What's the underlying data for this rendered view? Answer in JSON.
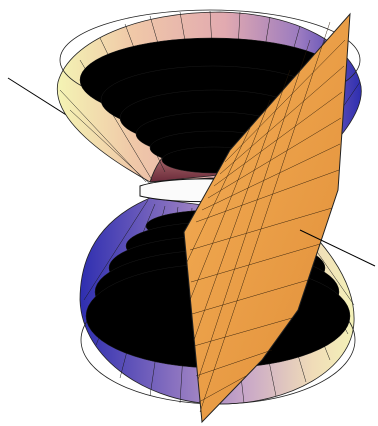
{
  "figure": {
    "description_type": "3D surface plot: hyperboloid of one sheet intersected by a plane",
    "colors": {
      "background": "#ffffff",
      "plane": "#f0a24a",
      "plane_dark": "#c8752a",
      "mesh_line": "#1a1a1a",
      "axis_line": "#000000",
      "cone_top_front": "#e8b2a0",
      "cone_top_left": "#f2f0b0",
      "cone_top_right": "#3a3ab8",
      "cone_top_inner": "#b05a50",
      "cone_bottom_left": "#3c3cbc",
      "cone_bottom_front": "#b89ac8",
      "cone_bottom_right": "#f2eeb4"
    }
  }
}
